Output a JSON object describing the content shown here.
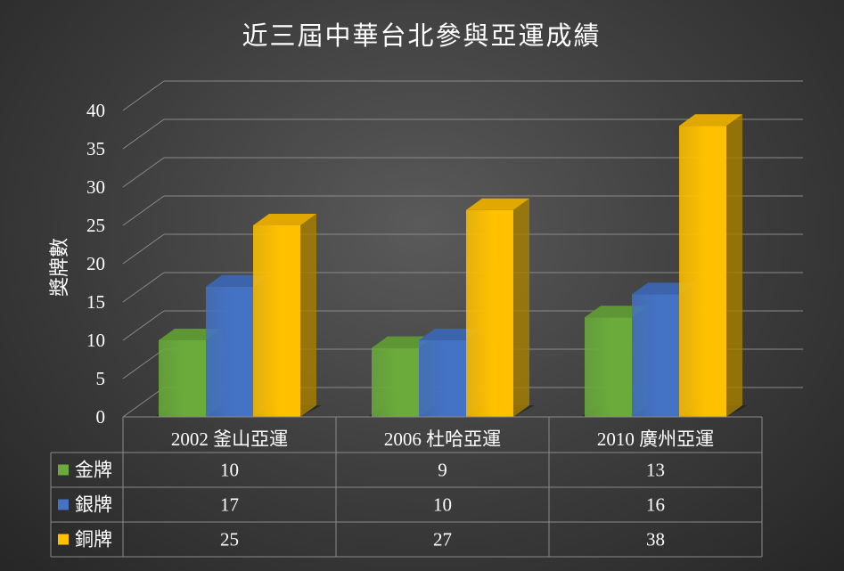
{
  "chart_data": {
    "type": "bar",
    "title": "近三屆中華台北參與亞運成績",
    "ylabel": "獎牌數",
    "ylim": [
      0,
      40
    ],
    "yticks": [
      0,
      5,
      10,
      15,
      20,
      25,
      30,
      35,
      40
    ],
    "grid": true,
    "style": "3d-clustered-column-with-data-table",
    "categories": [
      "2002 釜山亞運",
      "2006 杜哈亞運",
      "2010 廣州亞運"
    ],
    "series": [
      {
        "name": "金牌",
        "values": [
          10,
          9,
          13
        ],
        "color": "#6aab3b"
      },
      {
        "name": "銀牌",
        "values": [
          17,
          10,
          16
        ],
        "color": "#4472c4"
      },
      {
        "name": "銅牌",
        "values": [
          25,
          27,
          38
        ],
        "color": "#ffc000"
      }
    ]
  }
}
